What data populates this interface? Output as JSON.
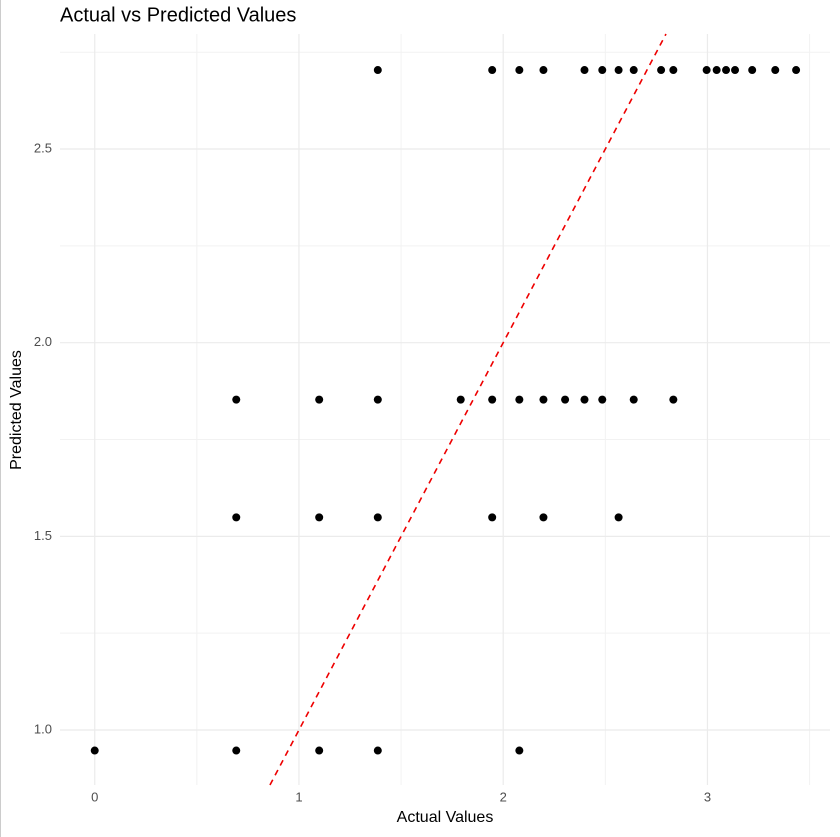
{
  "chart_data": {
    "type": "scatter",
    "title": "Actual vs Predicted Values",
    "x_label": "Actual Values",
    "y_label": "Predicted Values",
    "xlim": [
      -0.17,
      3.6
    ],
    "ylim": [
      0.858,
      2.797
    ],
    "xticks": [
      0,
      1,
      2,
      3
    ],
    "yticks": [
      {
        "value": 1,
        "label": "1.0"
      },
      1.5,
      {
        "value": 2,
        "label": "2.0"
      },
      2.5
    ],
    "x_minor_grid": [
      0.5,
      1.5,
      2.5,
      3.5
    ],
    "y_minor_grid": [
      1.25,
      1.75,
      2.25,
      2.75
    ],
    "grid": true,
    "reference_line": {
      "slope": 1,
      "intercept": 0,
      "color": "#ee0000"
    },
    "series": [
      {
        "color": "#000000",
        "x": [
          1.386,
          1.946,
          2.079,
          2.197,
          2.398,
          2.485,
          2.565,
          2.639,
          2.773,
          2.833,
          2.996,
          3.045,
          3.091,
          3.135,
          3.219,
          3.332,
          3.434,
          0.693,
          1.099,
          1.386,
          1.792,
          1.946,
          2.079,
          2.197,
          2.303,
          2.398,
          2.485,
          2.639,
          2.833,
          0.693,
          1.099,
          1.386,
          1.946,
          2.197,
          2.565,
          0,
          0.693,
          1.099,
          1.386,
          2.079
        ],
        "y": [
          2.704,
          2.704,
          2.704,
          2.704,
          2.704,
          2.704,
          2.704,
          2.704,
          2.704,
          2.704,
          2.704,
          2.704,
          2.704,
          2.704,
          2.704,
          2.704,
          2.704,
          1.853,
          1.853,
          1.853,
          1.853,
          1.853,
          1.853,
          1.853,
          1.853,
          1.853,
          1.853,
          1.853,
          1.853,
          1.549,
          1.549,
          1.549,
          1.549,
          1.549,
          1.549,
          0.947,
          0.947,
          0.947,
          0.947,
          0.947
        ]
      }
    ]
  }
}
